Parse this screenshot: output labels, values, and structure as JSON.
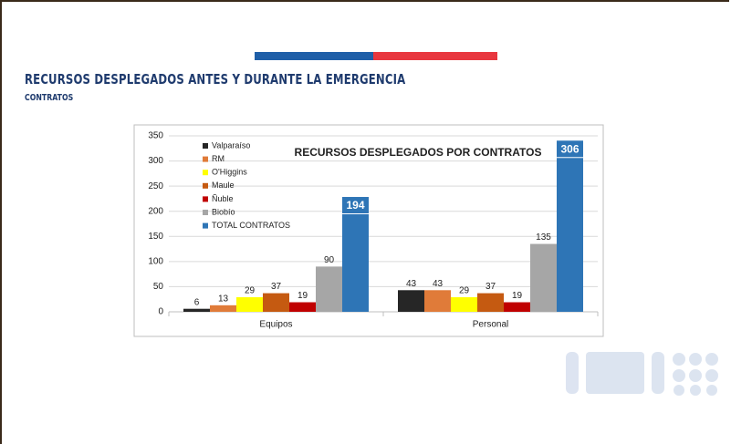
{
  "slide": {
    "title": "RECURSOS DESPLEGADOS ANTES Y DURANTE LA EMERGENCIA",
    "subtitle": "CONTRATOS"
  },
  "chart_data": {
    "type": "bar",
    "title": "RECURSOS DESPLEGADOS POR CONTRATOS",
    "categories": [
      "Equipos",
      "Personal"
    ],
    "series": [
      {
        "name": "Valparaíso",
        "color": "#262626",
        "values": [
          6,
          43
        ]
      },
      {
        "name": "RM",
        "color": "#e07b39",
        "values": [
          13,
          43
        ]
      },
      {
        "name": "O'Higgins",
        "color": "#ffff00",
        "values": [
          29,
          29
        ]
      },
      {
        "name": "Maule",
        "color": "#c55a11",
        "values": [
          37,
          37
        ]
      },
      {
        "name": "Ñuble",
        "color": "#c00000",
        "values": [
          19,
          19
        ]
      },
      {
        "name": "Biobío",
        "color": "#a6a6a6",
        "values": [
          90,
          135
        ]
      },
      {
        "name": "TOTAL CONTRATOS",
        "color": "#2e75b6",
        "values": [
          194,
          306
        ]
      }
    ],
    "ylim": [
      0,
      350
    ],
    "yticks": [
      0,
      50,
      100,
      150,
      200,
      250,
      300,
      350
    ],
    "grid": true,
    "legend": "upper left"
  }
}
